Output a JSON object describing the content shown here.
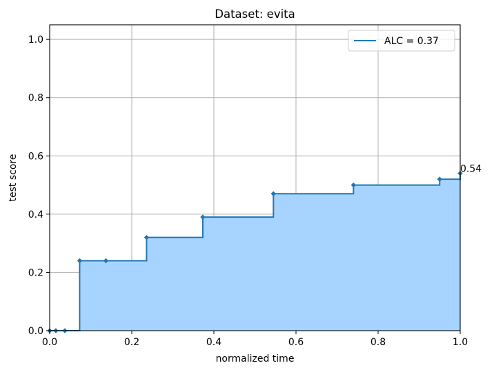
{
  "chart_data": {
    "type": "line",
    "step": "post",
    "title": "Dataset: evita",
    "xlabel": "normalized time",
    "ylabel": "test score",
    "xlim": [
      0,
      1
    ],
    "ylim": [
      0,
      1.05
    ],
    "xticks": [
      0.0,
      0.2,
      0.4,
      0.6,
      0.8,
      1.0
    ],
    "xtick_labels": [
      "0.0",
      "0.2",
      "0.4",
      "0.6",
      "0.8",
      "1.0"
    ],
    "yticks": [
      0.0,
      0.2,
      0.4,
      0.6,
      0.8,
      1.0
    ],
    "ytick_labels": [
      "0.0",
      "0.2",
      "0.4",
      "0.6",
      "0.8",
      "1.0"
    ],
    "grid": true,
    "legend": {
      "placement": "top-right",
      "entries": [
        "ALC = 0.37"
      ]
    },
    "series": [
      {
        "name": "ALC = 0.37",
        "x": [
          0.0,
          0.015,
          0.037,
          0.073,
          0.137,
          0.236,
          0.373,
          0.545,
          0.74,
          0.95,
          1.0
        ],
        "y": [
          0.0,
          0.0,
          0.0,
          0.24,
          0.24,
          0.32,
          0.39,
          0.47,
          0.5,
          0.52,
          0.54
        ]
      }
    ],
    "fill_under": true,
    "annotations": [
      {
        "x": 1.0,
        "y": 0.54,
        "text": "0.54"
      }
    ],
    "colors": {
      "line": "#1f77b4",
      "fill": "#a6d3ff",
      "grid": "#b0b0b0"
    }
  }
}
